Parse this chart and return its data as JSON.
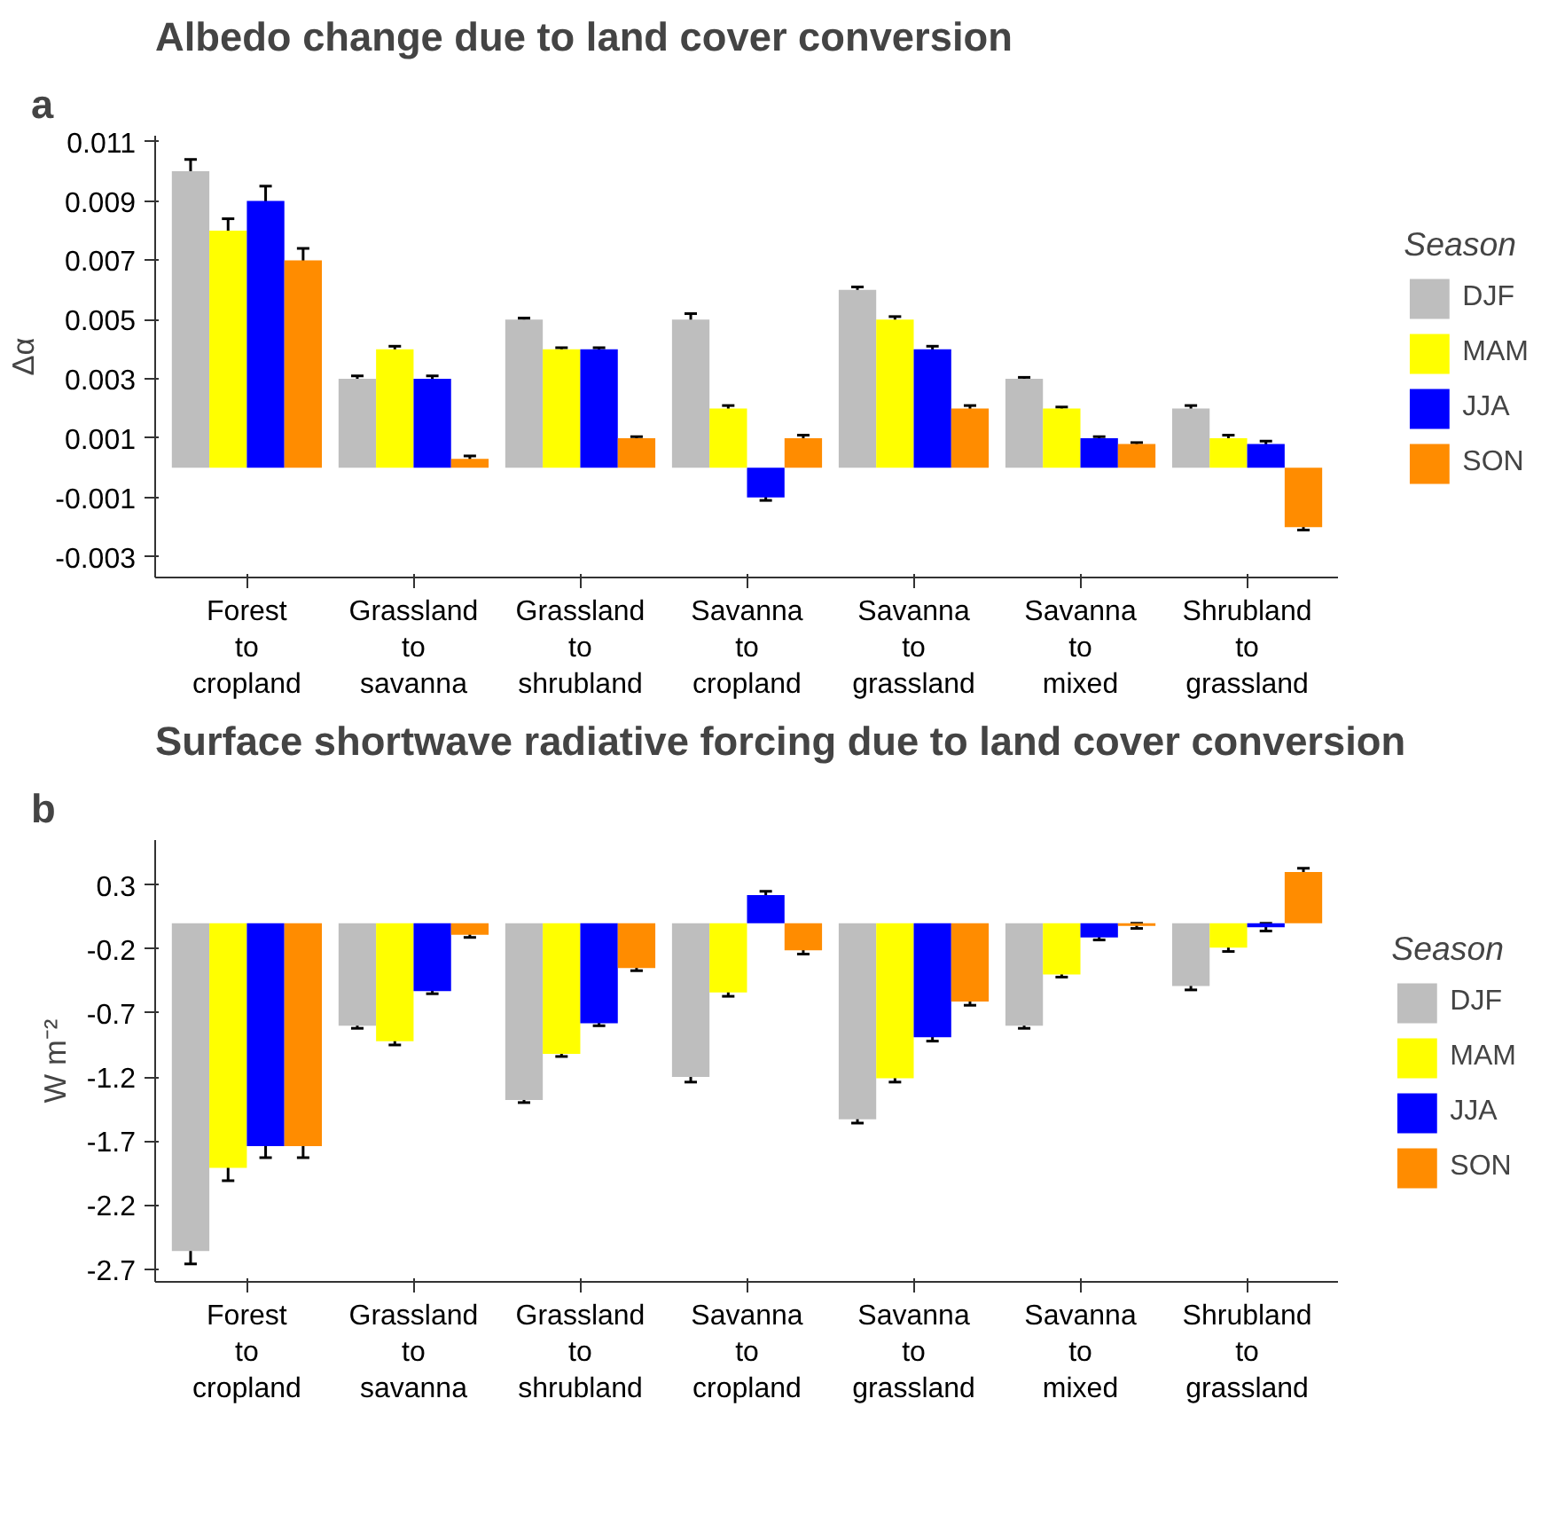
{
  "chart_data": [
    {
      "type": "bar",
      "title": "Albedo change due to land cover conversion",
      "annotations": [
        "a"
      ],
      "ylabel": "Δα",
      "legend_title": "Season",
      "legend": "right",
      "grid": false,
      "categories": [
        "Forest to cropland",
        "Grassland to savanna",
        "Grassland to shrubland",
        "Savanna to cropland",
        "Savanna to grassland",
        "Savanna to mixed",
        "Shrubland to grassland"
      ],
      "ylim": [
        -0.0037,
        0.0112
      ],
      "yticks": [
        0.011,
        0.009,
        0.007,
        0.005,
        0.003,
        0.001,
        -0.001,
        -0.003
      ],
      "series": [
        {
          "name": "DJF",
          "color": "#bebebe",
          "values": [
            0.01,
            0.003,
            0.005,
            0.005,
            0.006,
            0.003,
            0.002
          ],
          "errors": [
            0.0004,
            0.0001,
            5e-05,
            0.0002,
            0.0001,
            5e-05,
            0.0001
          ]
        },
        {
          "name": "MAM",
          "color": "#ffff00",
          "values": [
            0.008,
            0.004,
            0.004,
            0.002,
            0.005,
            0.002,
            0.001
          ],
          "errors": [
            0.0004,
            0.0001,
            5e-05,
            0.0001,
            0.0001,
            5e-05,
            0.0001
          ]
        },
        {
          "name": "JJA",
          "color": "#0000ff",
          "values": [
            0.009,
            0.003,
            0.004,
            -0.001,
            0.004,
            0.001,
            0.0008
          ],
          "errors": [
            0.0005,
            0.0001,
            5e-05,
            0.0001,
            0.0001,
            5e-05,
            0.0001
          ]
        },
        {
          "name": "SON",
          "color": "#ff8c00",
          "values": [
            0.007,
            0.0003,
            0.001,
            0.001,
            0.002,
            0.0008,
            -0.002
          ],
          "errors": [
            0.0004,
            0.0001,
            5e-05,
            0.0001,
            0.0001,
            5e-05,
            0.0001
          ]
        }
      ]
    },
    {
      "type": "bar",
      "title": "Surface shortwave radiative forcing due to land cover conversion",
      "annotations": [
        "b"
      ],
      "ylabel": "W m⁻²",
      "legend_title": "Season",
      "legend": "right",
      "grid": false,
      "categories": [
        "Forest to cropland",
        "Grassland to savanna",
        "Grassland to shrubland",
        "Savanna to cropland",
        "Savanna to grassland",
        "Savanna to mixed",
        "Shrubland to grassland"
      ],
      "ylim": [
        -2.8,
        0.65
      ],
      "yticks": [
        0.3,
        -0.2,
        -0.7,
        -1.2,
        -1.7,
        -2.2,
        -2.7
      ],
      "series": [
        {
          "name": "DJF",
          "color": "#bebebe",
          "values": [
            -2.56,
            -0.8,
            -1.38,
            -1.2,
            -1.53,
            -0.8,
            -0.49
          ],
          "errors": [
            0.1,
            0.02,
            0.02,
            0.04,
            0.03,
            0.02,
            0.03
          ]
        },
        {
          "name": "MAM",
          "color": "#ffff00",
          "values": [
            -1.91,
            -0.92,
            -1.02,
            -0.54,
            -1.21,
            -0.4,
            -0.19
          ],
          "errors": [
            0.1,
            0.03,
            0.02,
            0.03,
            0.03,
            0.02,
            0.03
          ]
        },
        {
          "name": "JJA",
          "color": "#0000ff",
          "values": [
            -1.74,
            -0.53,
            -0.78,
            0.22,
            -0.89,
            -0.11,
            -0.03
          ],
          "errors": [
            0.09,
            0.02,
            0.02,
            0.03,
            0.03,
            0.02,
            0.03
          ]
        },
        {
          "name": "SON",
          "color": "#ff8c00",
          "values": [
            -1.74,
            -0.09,
            -0.35,
            -0.21,
            -0.61,
            -0.02,
            0.4
          ],
          "errors": [
            0.09,
            0.02,
            0.02,
            0.03,
            0.03,
            0.02,
            0.03
          ]
        }
      ]
    }
  ]
}
